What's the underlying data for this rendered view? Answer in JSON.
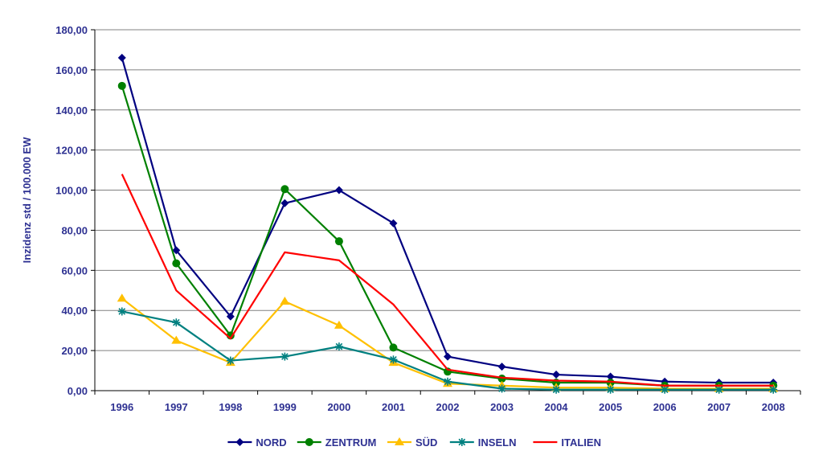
{
  "chart_data": {
    "type": "line",
    "title": "",
    "xlabel": "",
    "ylabel": "Inzidenz std / 100.000 EW",
    "categories": [
      "1996",
      "1997",
      "1998",
      "1999",
      "2000",
      "2001",
      "2002",
      "2003",
      "2004",
      "2005",
      "2006",
      "2007",
      "2008"
    ],
    "ylim": [
      0,
      180
    ],
    "yticks": [
      "0,00",
      "20,00",
      "40,00",
      "60,00",
      "80,00",
      "100,00",
      "120,00",
      "140,00",
      "160,00",
      "180,00"
    ],
    "grid": true,
    "legend_position": "bottom",
    "series": [
      {
        "name": "NORD",
        "color": "#000080",
        "marker": "diamond",
        "values": [
          166,
          70,
          37,
          93.5,
          100,
          83.5,
          17,
          12,
          8,
          7,
          4.5,
          4,
          4
        ]
      },
      {
        "name": "ZENTRUM",
        "color": "#008000",
        "marker": "circle",
        "values": [
          152,
          63.5,
          27.5,
          100.5,
          74.5,
          21.5,
          9.5,
          6,
          4,
          4,
          2.5,
          2.5,
          2.5
        ]
      },
      {
        "name": "SÜD",
        "color": "#ffc000",
        "marker": "triangle",
        "values": [
          46,
          25,
          14,
          44.5,
          32.5,
          14,
          3.5,
          2.5,
          1.5,
          1.5,
          1,
          1,
          1
        ]
      },
      {
        "name": "INSELN",
        "color": "#008080",
        "marker": "star",
        "values": [
          39.5,
          34,
          15,
          17,
          22,
          15.5,
          4.5,
          1,
          0.5,
          0.5,
          0.5,
          0.5,
          0.5
        ]
      },
      {
        "name": "ITALIEN",
        "color": "#ff0000",
        "marker": "none",
        "values": [
          108,
          50,
          26,
          69,
          65,
          43,
          10.5,
          6.5,
          5,
          4.5,
          2.5,
          2.5,
          2.5
        ]
      }
    ]
  }
}
